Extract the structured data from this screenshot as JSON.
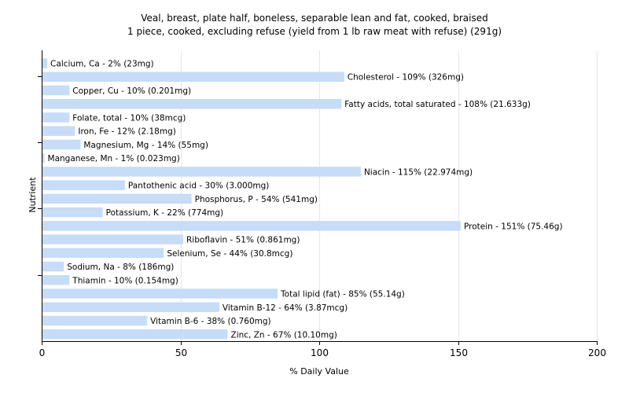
{
  "chart_data": {
    "type": "bar",
    "orientation": "horizontal",
    "title": "Veal, breast, plate half, boneless, separable lean and fat, cooked, braised",
    "subtitle": "1 piece, cooked, excluding refuse (yield from 1 lb raw meat with refuse) (291g)",
    "xlabel": "% Daily Value",
    "ylabel": "Nutrient",
    "xlim": [
      0,
      200
    ],
    "xticks": [
      0,
      50,
      100,
      150,
      200
    ],
    "grid": true,
    "bar_color": "#c6dcf7",
    "categories": [
      "Calcium, Ca",
      "Cholesterol",
      "Copper, Cu",
      "Fatty acids, total saturated",
      "Folate, total",
      "Iron, Fe",
      "Magnesium, Mg",
      "Manganese, Mn",
      "Niacin",
      "Pantothenic acid",
      "Phosphorus, P",
      "Potassium, K",
      "Protein",
      "Riboflavin",
      "Selenium, Se",
      "Sodium, Na",
      "Thiamin",
      "Total lipid (fat)",
      "Vitamin B-12",
      "Vitamin B-6",
      "Zinc, Zn"
    ],
    "values": [
      2,
      109,
      10,
      108,
      10,
      12,
      14,
      1,
      115,
      30,
      54,
      22,
      151,
      51,
      44,
      8,
      10,
      85,
      64,
      38,
      67
    ],
    "labels": [
      "Calcium, Ca - 2% (23mg)",
      "Cholesterol - 109% (326mg)",
      "Copper, Cu - 10% (0.201mg)",
      "Fatty acids, total saturated - 108% (21.633g)",
      "Folate, total - 10% (38mcg)",
      "Iron, Fe - 12% (2.18mg)",
      "Magnesium, Mg - 14% (55mg)",
      "Manganese, Mn - 1% (0.023mg)",
      "Niacin - 115% (22.974mg)",
      "Pantothenic acid - 30% (3.000mg)",
      "Phosphorus, P - 54% (541mg)",
      "Potassium, K - 22% (774mg)",
      "Protein - 151% (75.46g)",
      "Riboflavin - 51% (0.861mg)",
      "Selenium, Se - 44% (30.8mcg)",
      "Sodium, Na - 8% (186mg)",
      "Thiamin - 10% (0.154mg)",
      "Total lipid (fat) - 85% (55.14g)",
      "Vitamin B-12 - 64% (3.87mcg)",
      "Vitamin B-6 - 38% (0.760mg)",
      "Zinc, Zn - 67% (10.10mg)"
    ]
  }
}
